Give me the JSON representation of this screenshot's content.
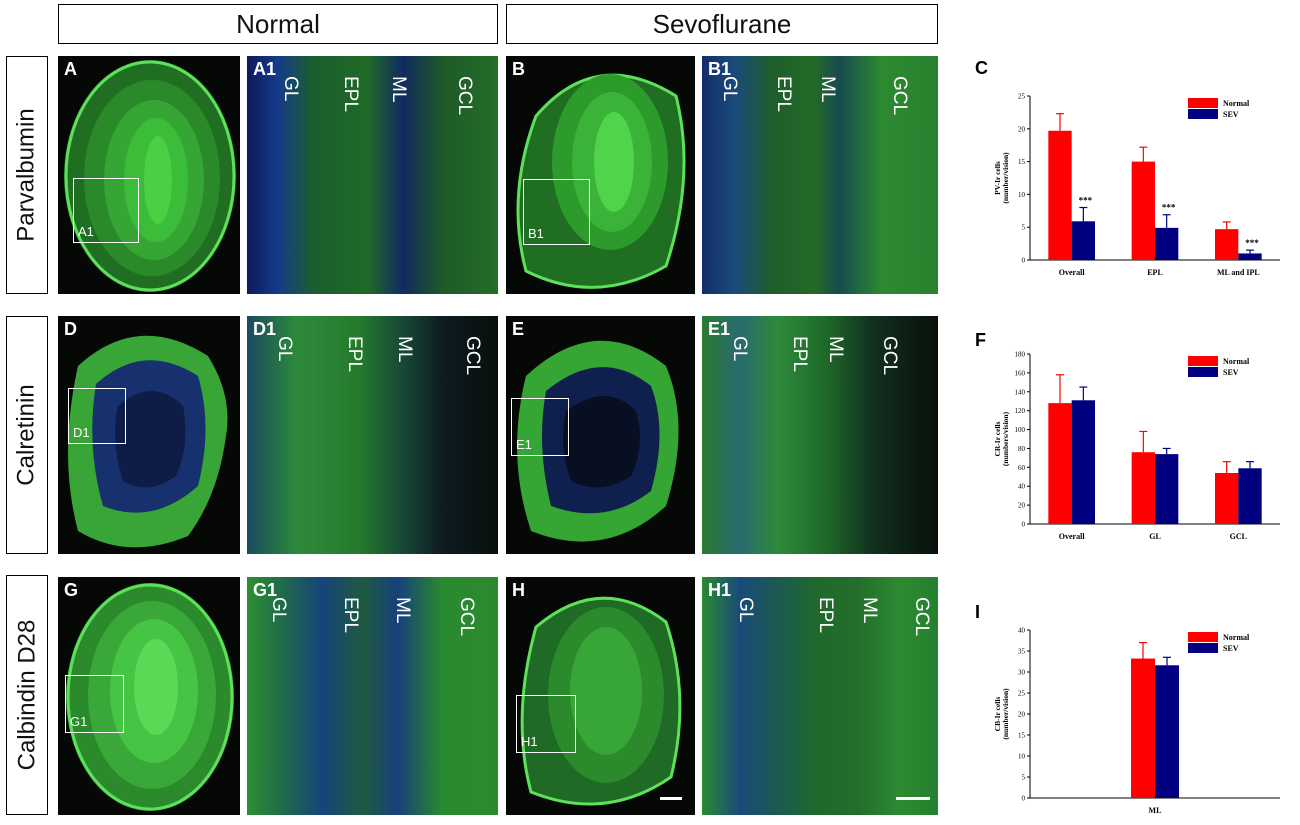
{
  "headers": {
    "normal": "Normal",
    "sevoflurane": "Sevoflurane"
  },
  "rows": {
    "parvalbumin": "Parvalbumin",
    "calretinin": "Calretinin",
    "calbindin": "Calbindin D28"
  },
  "panels": {
    "A": "A",
    "A1": "A1",
    "B": "B",
    "B1": "B1",
    "D": "D",
    "D1": "D1",
    "E": "E",
    "E1": "E1",
    "G": "G",
    "G1": "G1",
    "H": "H",
    "H1": "H1"
  },
  "layers": {
    "gl": "GL",
    "epl": "EPL",
    "ml": "ML",
    "gcl": "GCL"
  },
  "colors": {
    "normal": "#ff0000",
    "sev": "#000080",
    "tissue_green": "#2fae2a",
    "nuclei_blue": "#2a47b8"
  },
  "chart_data": [
    {
      "panel": "C",
      "type": "bar",
      "categories": [
        "Overall",
        "EPL",
        "ML and IPL"
      ],
      "series": [
        {
          "name": "Normal",
          "values": [
            19.7,
            15.0,
            4.7
          ],
          "errors": [
            2.6,
            2.2,
            1.1
          ]
        },
        {
          "name": "SEV",
          "values": [
            5.9,
            4.9,
            1.0
          ],
          "errors": [
            2.1,
            2.0,
            0.5
          ]
        }
      ],
      "annotations": [
        "***",
        "***",
        "***"
      ],
      "ylabel": "PV-Ir cells (number/vision)",
      "ylim": [
        0,
        25
      ],
      "yticks": [
        0,
        5,
        10,
        15,
        20,
        25
      ],
      "legend": "top-right"
    },
    {
      "panel": "F",
      "type": "bar",
      "categories": [
        "Overall",
        "GL",
        "GCL"
      ],
      "series": [
        {
          "name": "Normal",
          "values": [
            128,
            76,
            54
          ],
          "errors": [
            30,
            22,
            12
          ]
        },
        {
          "name": "SEV",
          "values": [
            131,
            74,
            59
          ],
          "errors": [
            14,
            6,
            7
          ]
        }
      ],
      "ylabel": "CR-Ir cells (numbers/vision)",
      "ylim": [
        0,
        180
      ],
      "yticks": [
        0,
        20,
        40,
        60,
        80,
        100,
        120,
        140,
        160,
        180
      ],
      "legend": "top-right"
    },
    {
      "panel": "I",
      "type": "bar",
      "categories": [
        "ML"
      ],
      "series": [
        {
          "name": "Normal",
          "values": [
            33.2
          ],
          "errors": [
            3.8
          ]
        },
        {
          "name": "SEV",
          "values": [
            31.6
          ],
          "errors": [
            1.9
          ]
        }
      ],
      "ylabel": "CB-Ir cells (number/vision)",
      "ylim": [
        0,
        40
      ],
      "yticks": [
        0,
        5,
        10,
        15,
        20,
        25,
        30,
        35,
        40
      ],
      "legend": "top-right"
    }
  ]
}
